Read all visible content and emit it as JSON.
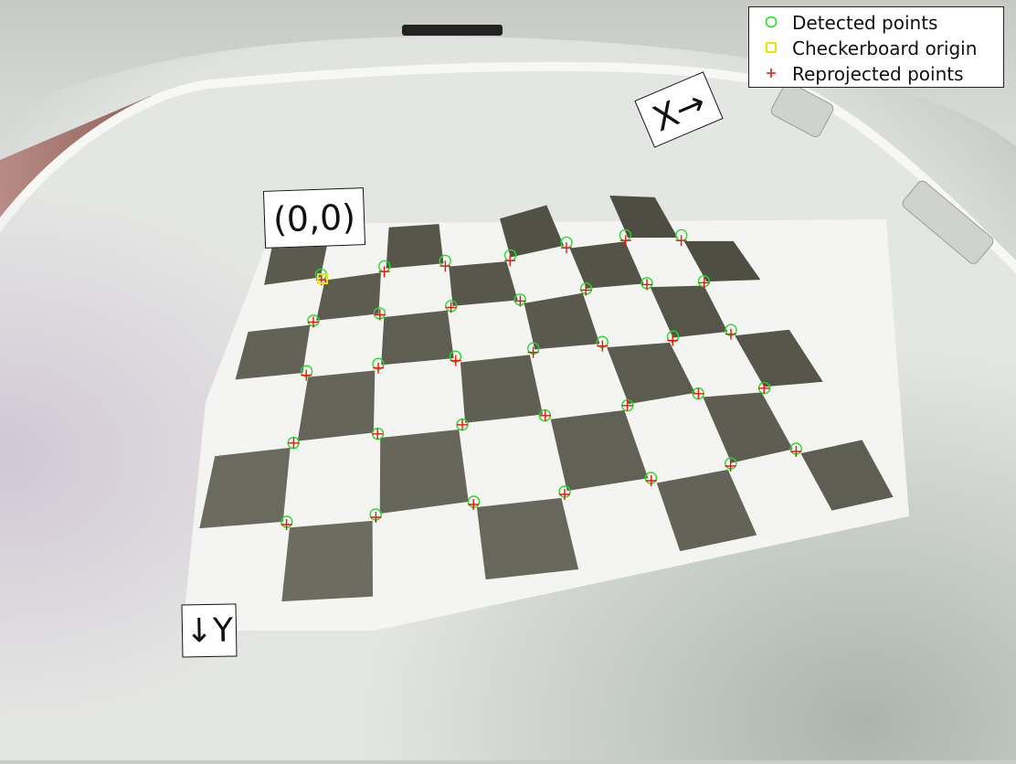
{
  "legend": {
    "detected_label": "Detected points",
    "origin_label": "Checkerboard origin",
    "reprojected_label": "Reprojected points"
  },
  "labels": {
    "origin": "(0,0)",
    "x_axis": "X→",
    "y_axis": "↓Y"
  },
  "colors": {
    "detected": "#22dd22",
    "origin": "#f2e20c",
    "reprojected": "#ee1111"
  }
}
